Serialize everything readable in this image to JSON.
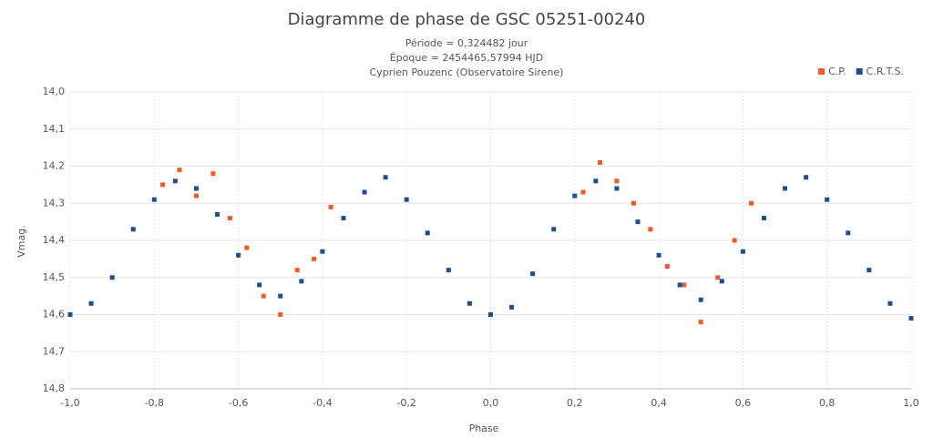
{
  "chart_data": {
    "type": "scatter",
    "title": "Diagramme de phase de GSC 05251-00240",
    "subtitle": [
      "Période = 0,324482 jour",
      "Époque = 2454465,57994 HJD",
      "Cyprien Pouzenc (Observatoire Sirene)"
    ],
    "x_label": "Phase",
    "y_label": "Vmag.",
    "xlim": [
      -1,
      1
    ],
    "ylim": [
      14.8,
      14.0
    ],
    "y_reversed": true,
    "xticks": [
      {
        "value": -1,
        "label": "-1,0"
      },
      {
        "value": -0.8,
        "label": "-0,8"
      },
      {
        "value": -0.6,
        "label": "-0,6"
      },
      {
        "value": -0.4,
        "label": "-0,4"
      },
      {
        "value": -0.2,
        "label": "-0,2"
      },
      {
        "value": 0,
        "label": "0,0"
      },
      {
        "value": 0.2,
        "label": "0,2"
      },
      {
        "value": 0.4,
        "label": "0,4"
      },
      {
        "value": 0.6,
        "label": "0,6"
      },
      {
        "value": 0.8,
        "label": "0,8"
      },
      {
        "value": 1,
        "label": "1,0"
      }
    ],
    "yticks": [
      {
        "value": 14.0,
        "label": "14,0"
      },
      {
        "value": 14.1,
        "label": "14,1"
      },
      {
        "value": 14.2,
        "label": "14,2"
      },
      {
        "value": 14.3,
        "label": "14,3"
      },
      {
        "value": 14.4,
        "label": "14,4"
      },
      {
        "value": 14.5,
        "label": "14,5"
      },
      {
        "value": 14.6,
        "label": "14,6"
      },
      {
        "value": 14.7,
        "label": "14,7"
      },
      {
        "value": 14.8,
        "label": "14,8"
      }
    ],
    "grid": true,
    "legend": "top-right",
    "series": [
      {
        "name": "C.P.",
        "color": "#ef5a28",
        "x": [
          -0.78,
          -0.74,
          -0.7,
          -0.66,
          -0.62,
          -0.58,
          -0.54,
          -0.5,
          -0.46,
          -0.42,
          -0.38,
          0.22,
          0.26,
          0.3,
          0.34,
          0.38,
          0.42,
          0.46,
          0.5,
          0.54,
          0.58,
          0.62
        ],
        "values": [
          14.25,
          14.21,
          14.28,
          14.22,
          14.34,
          14.42,
          14.55,
          14.6,
          14.48,
          14.45,
          14.31,
          14.27,
          14.19,
          14.24,
          14.3,
          14.37,
          14.47,
          14.52,
          14.62,
          14.5,
          14.4,
          14.3
        ]
      },
      {
        "name": "C.R.T.S.",
        "color": "#1f4e8c",
        "x": [
          -1,
          -0.95,
          -0.9,
          -0.85,
          -0.8,
          -0.75,
          -0.7,
          -0.65,
          -0.6,
          -0.55,
          -0.5,
          -0.45,
          -0.4,
          -0.35,
          -0.3,
          -0.25,
          -0.2,
          -0.15,
          -0.1,
          -0.05,
          0,
          0.05,
          0.1,
          0.15,
          0.2,
          0.25,
          0.3,
          0.35,
          0.4,
          0.45,
          0.5,
          0.55,
          0.6,
          0.65,
          0.7,
          0.75,
          0.8,
          0.85,
          0.9,
          0.95,
          1
        ],
        "values": [
          14.6,
          14.57,
          14.5,
          14.37,
          14.29,
          14.24,
          14.26,
          14.33,
          14.44,
          14.52,
          14.55,
          14.51,
          14.43,
          14.34,
          14.27,
          14.23,
          14.29,
          14.38,
          14.48,
          14.57,
          14.6,
          14.58,
          14.49,
          14.37,
          14.28,
          14.24,
          14.26,
          14.35,
          14.44,
          14.52,
          14.56,
          14.51,
          14.43,
          14.34,
          14.26,
          14.23,
          14.29,
          14.38,
          14.48,
          14.57,
          14.61
        ]
      }
    ]
  }
}
